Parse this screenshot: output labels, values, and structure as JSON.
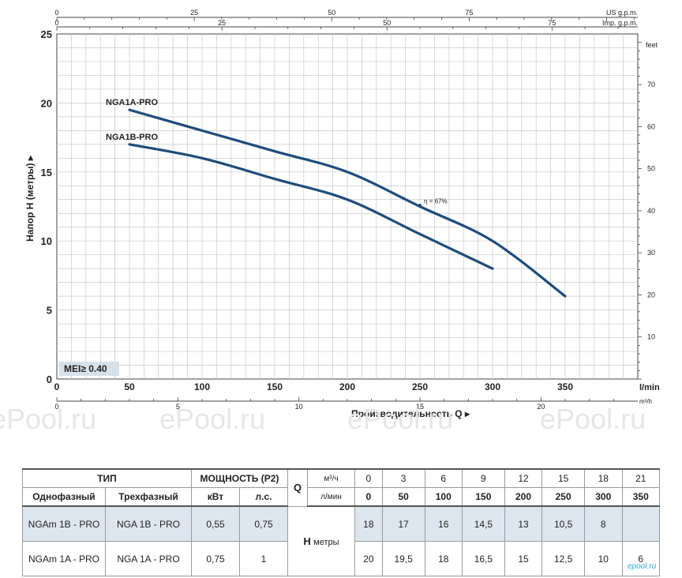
{
  "chart_data": {
    "type": "line",
    "ylabel": "Напор H (метры)",
    "xlabel": "Производительность Q",
    "x_unit": "l/min",
    "x_ticks_lmin": [
      0,
      50,
      100,
      150,
      200,
      250,
      300,
      350
    ],
    "x_range_lmin": [
      0,
      400
    ],
    "y_ticks_m": [
      0,
      5,
      10,
      15,
      20,
      25
    ],
    "y_range_m": [
      0,
      25
    ],
    "right_axis": {
      "unit": "feet",
      "ticks": [
        10,
        20,
        30,
        40,
        50,
        60,
        70
      ]
    },
    "top_axis_us": {
      "unit": "US g.p.m.",
      "ticks": [
        0,
        25,
        50,
        75
      ]
    },
    "top_axis_imp": {
      "unit": "Imp. g.p.m.",
      "ticks": [
        0,
        25,
        50,
        75
      ]
    },
    "bottom_axis_m3h": {
      "unit": "m³/h",
      "ticks": [
        0,
        5,
        10,
        15,
        20
      ]
    },
    "grid": true,
    "series": [
      {
        "name": "NGA1A-PRO",
        "color": "#1e4c7a",
        "x": [
          50,
          100,
          150,
          200,
          250,
          300,
          350
        ],
        "y": [
          19.5,
          18,
          16.5,
          15,
          12.5,
          10,
          6
        ]
      },
      {
        "name": "NGA1B-PRO",
        "color": "#1e4c7a",
        "x": [
          50,
          100,
          150,
          200,
          250,
          300
        ],
        "y": [
          17,
          16,
          14.5,
          13,
          10.5,
          8
        ]
      }
    ],
    "annotation": {
      "text": "η = 67%",
      "x": 250,
      "y": 12.8
    },
    "badge": "MEI≥ 0.40"
  },
  "watermark": [
    "ePool.ru",
    "ePool.ru",
    "ePool.ru",
    "ePool.ru"
  ],
  "table": {
    "type_header": "ТИП",
    "power_header": "МОЩНОСТЬ (P2)",
    "single_phase": "Однофазный",
    "three_phase": "Трехфазный",
    "kw": "кВт",
    "hp": "л.с.",
    "q_label": "Q",
    "q_unit_m3h": "м³/ч",
    "q_unit_lmin": "л/мин",
    "q_m3h": [
      "0",
      "3",
      "6",
      "9",
      "12",
      "15",
      "18",
      "21"
    ],
    "q_lmin": [
      "0",
      "50",
      "100",
      "150",
      "200",
      "250",
      "300",
      "350"
    ],
    "h_label": "H",
    "h_unit": "метры",
    "rows": [
      {
        "single": "NGAm 1B - PRO",
        "three": "NGA 1B - PRO",
        "kw": "0,55",
        "hp": "0,75",
        "h": [
          "18",
          "17",
          "16",
          "14,5",
          "13",
          "10,5",
          "8",
          ""
        ]
      },
      {
        "single": "NGAm 1A - PRO",
        "three": "NGA 1A - PRO",
        "kw": "0,75",
        "hp": "1",
        "h": [
          "20",
          "19,5",
          "18",
          "16,5",
          "15",
          "12,5",
          "10",
          "6"
        ]
      }
    ]
  },
  "logo": "epool.ru"
}
